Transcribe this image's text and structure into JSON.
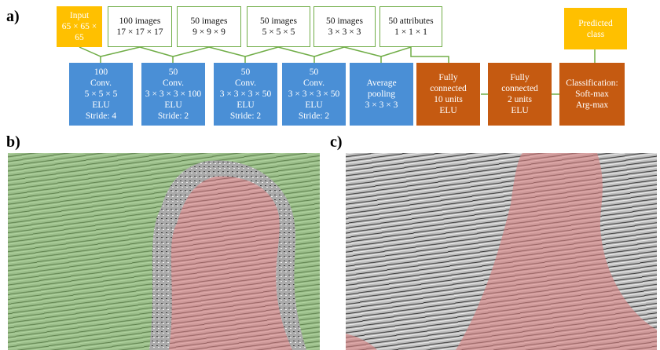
{
  "panels": {
    "a": "a)",
    "b": "b)",
    "c": "c)"
  },
  "top_row": [
    {
      "lines": [
        "Input",
        "65 × 65 × 65"
      ]
    },
    {
      "lines": [
        "100 images",
        "17 × 17 × 17"
      ]
    },
    {
      "lines": [
        "50 images",
        "9 × 9 × 9"
      ]
    },
    {
      "lines": [
        "50 images",
        "5 × 5 × 5"
      ]
    },
    {
      "lines": [
        "50 images",
        "3 × 3 × 3"
      ]
    },
    {
      "lines": [
        "50 attributes",
        "1 × 1 × 1"
      ]
    }
  ],
  "bottom_row": [
    {
      "lines": [
        "100",
        "Conv.",
        "5 × 5 × 5",
        "ELU",
        "Stride: 4"
      ]
    },
    {
      "lines": [
        "50",
        "Conv.",
        "3 × 3 × 3 × 100",
        "ELU",
        "Stride: 2"
      ]
    },
    {
      "lines": [
        "50",
        "Conv.",
        "3 × 3 × 3 × 50",
        "ELU",
        "Stride: 2"
      ]
    },
    {
      "lines": [
        "50",
        "Conv.",
        "3 × 3 × 3 × 50",
        "ELU",
        "Stride: 2"
      ]
    },
    {
      "lines": [
        "Average",
        "pooling",
        "3 × 3 × 3"
      ]
    },
    {
      "lines": [
        "Fully",
        "connected",
        "10  units",
        "ELU"
      ]
    },
    {
      "lines": [
        "Fully",
        "connected",
        "2 units",
        "ELU"
      ]
    },
    {
      "lines": [
        "Classification:",
        "Soft-max",
        "Arg-max"
      ]
    }
  ],
  "output": {
    "lines": [
      "Predicted",
      "class"
    ]
  }
}
